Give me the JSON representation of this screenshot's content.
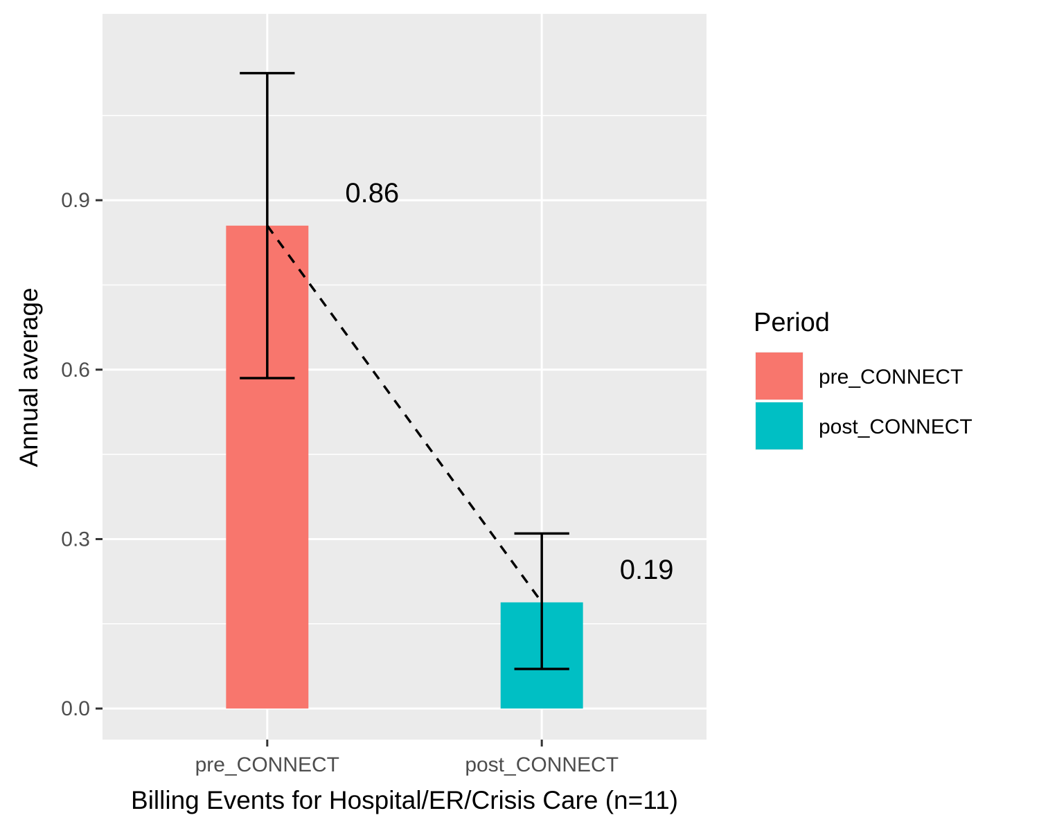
{
  "chart_data": {
    "type": "bar",
    "categories": [
      "pre_CONNECT",
      "post_CONNECT"
    ],
    "values": [
      0.855,
      0.188
    ],
    "data_labels": [
      "0.86",
      "0.19"
    ],
    "error_bars": [
      {
        "lower": 0.585,
        "upper": 1.125
      },
      {
        "lower": 0.07,
        "upper": 0.31
      }
    ],
    "colors": [
      "#F8766D",
      "#00BFC4"
    ],
    "trend_line": "dashed",
    "xlabel": "Billing Events for Hospital/ER/Crisis Care (n=11)",
    "ylabel": "Annual average",
    "ylim": [
      -0.055,
      1.23
    ],
    "yticks": [
      0.0,
      0.3,
      0.6,
      0.9
    ],
    "ytick_labels": [
      "0.0",
      "0.3",
      "0.6",
      "0.9"
    ],
    "grid": true,
    "legend": {
      "title": "Period",
      "position": "right",
      "entries": [
        "pre_CONNECT",
        "post_CONNECT"
      ]
    }
  }
}
